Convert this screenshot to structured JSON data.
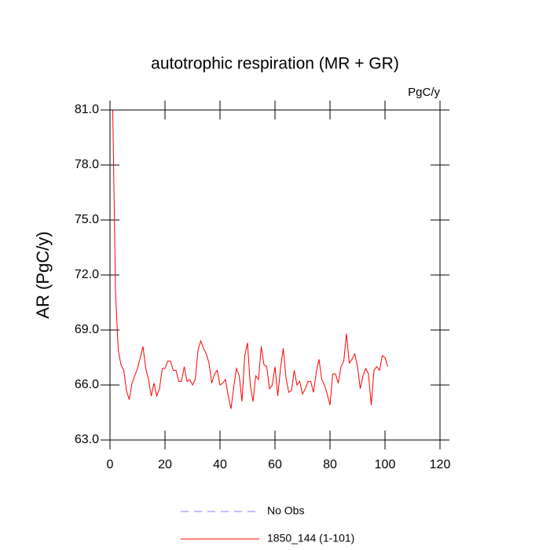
{
  "chart_data": {
    "type": "line",
    "title": "autotrophic respiration (MR + GR)",
    "units": "PgC/y",
    "y_label": "AR  (PgC/y)",
    "x": [
      1,
      2,
      3,
      4,
      5,
      6,
      7,
      8,
      9,
      10,
      11,
      12,
      13,
      14,
      15,
      16,
      17,
      18,
      19,
      20,
      21,
      22,
      23,
      24,
      25,
      26,
      27,
      28,
      29,
      30,
      31,
      32,
      33,
      34,
      35,
      36,
      37,
      38,
      39,
      40,
      41,
      42,
      43,
      44,
      45,
      46,
      47,
      48,
      49,
      50,
      51,
      52,
      53,
      54,
      55,
      56,
      57,
      58,
      59,
      60,
      61,
      62,
      63,
      64,
      65,
      66,
      67,
      68,
      69,
      70,
      71,
      72,
      73,
      74,
      75,
      76,
      77,
      78,
      79,
      80,
      81,
      82,
      83,
      84,
      85,
      86,
      87,
      88,
      89,
      90,
      91,
      92,
      93,
      94,
      95,
      96,
      97,
      98,
      99,
      100,
      101
    ],
    "series": [
      {
        "name": "No Obs",
        "color": "#8080ff",
        "dashed": true,
        "values": [
          null,
          null,
          null,
          null,
          null,
          null,
          null,
          null,
          null,
          null,
          null,
          null,
          null,
          null,
          null,
          null,
          null,
          null,
          null,
          null,
          null,
          null,
          null,
          null,
          null,
          null,
          null,
          null,
          null,
          null,
          null,
          null,
          null,
          null,
          null,
          null,
          null,
          null,
          null,
          null,
          null,
          null,
          null,
          null,
          null,
          null,
          null,
          null,
          null,
          null,
          null,
          null,
          null,
          null,
          null,
          null,
          null,
          null,
          null,
          null,
          null,
          null,
          null,
          null,
          null,
          null,
          null,
          null,
          null,
          null,
          null,
          null,
          null,
          null,
          null,
          null,
          null,
          null,
          null,
          null,
          null,
          null,
          null,
          null,
          null,
          null,
          null,
          null,
          null,
          null,
          null,
          null,
          null,
          null,
          null,
          null,
          null,
          null,
          null,
          null,
          null
        ]
      },
      {
        "name": "1850_144 (1-101)",
        "color": "#ff0000",
        "dashed": false,
        "values": [
          81.0,
          71.1,
          67.9,
          67.1,
          66.8,
          65.7,
          65.2,
          66.1,
          66.5,
          66.9,
          67.5,
          68.1,
          66.9,
          66.3,
          65.4,
          66.1,
          65.4,
          65.8,
          66.9,
          66.9,
          67.3,
          67.3,
          66.8,
          66.8,
          66.2,
          66.2,
          67.0,
          66.2,
          66.3,
          66.0,
          66.3,
          67.9,
          68.4,
          68.0,
          67.7,
          67.2,
          66.1,
          66.6,
          66.8,
          66.0,
          66.1,
          66.3,
          65.4,
          64.7,
          65.9,
          66.9,
          66.5,
          65.1,
          67.6,
          68.3,
          66.0,
          65.1,
          66.5,
          66.3,
          68.1,
          67.1,
          67.0,
          65.8,
          66.0,
          67.0,
          65.4,
          66.9,
          68.0,
          66.4,
          65.6,
          65.7,
          66.8,
          66.0,
          66.2,
          65.5,
          65.8,
          66.2,
          66.2,
          65.6,
          66.7,
          67.4,
          66.3,
          66.0,
          65.5,
          64.9,
          66.6,
          66.6,
          66.1,
          67.0,
          67.3,
          68.8,
          67.2,
          67.4,
          67.7,
          67.0,
          65.8,
          66.5,
          66.9,
          66.6,
          64.9,
          66.8,
          67.0,
          66.8,
          67.6,
          67.5,
          67.0
        ]
      }
    ],
    "xlim": [
      0,
      120
    ],
    "xticks": [
      0,
      20,
      40,
      60,
      80,
      100,
      120
    ],
    "ylim": [
      63,
      81
    ],
    "yticks": [
      {
        "value": 63,
        "label": "63.0"
      },
      {
        "value": 66,
        "label": "66.0"
      },
      {
        "value": 69,
        "label": "69.0"
      },
      {
        "value": 72,
        "label": "72.0"
      },
      {
        "value": 75,
        "label": "75.0"
      },
      {
        "value": 78,
        "label": "78.0"
      },
      {
        "value": 81,
        "label": "81.0"
      }
    ],
    "grid": false
  }
}
